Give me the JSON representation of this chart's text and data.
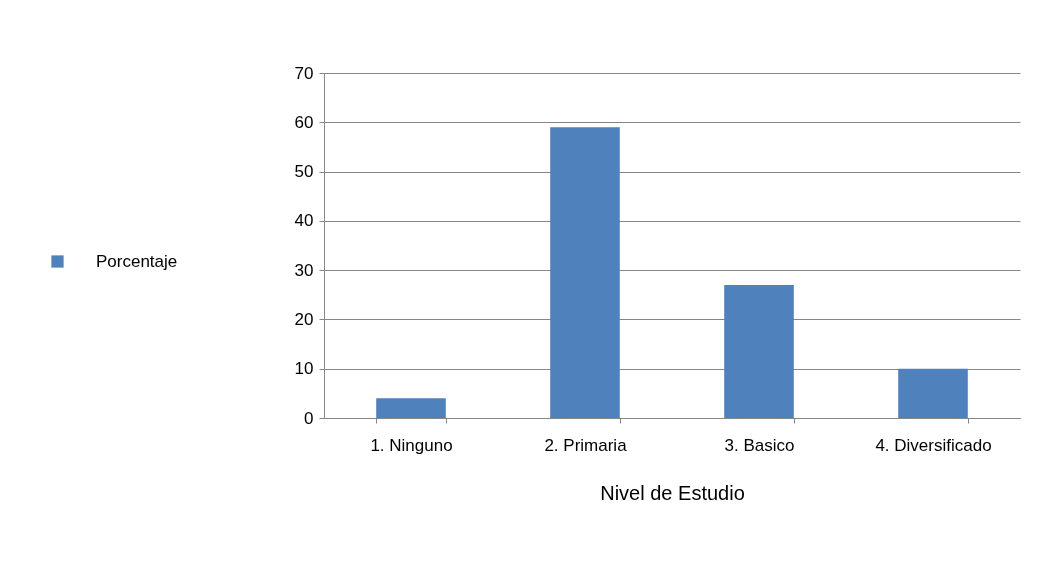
{
  "chart_data": {
    "type": "bar",
    "xlabel": "Nivel de Estudio",
    "categories": [
      "1. Ninguno",
      "2. Primaria",
      "3. Basico",
      "4. Diversificado"
    ],
    "series": [
      {
        "name": "Porcentaje",
        "color": "#4f81bd",
        "values": [
          4,
          59,
          27,
          10
        ]
      }
    ],
    "ylim": [
      0,
      70
    ],
    "yticks": [
      0,
      10,
      20,
      30,
      40,
      50,
      60,
      70
    ],
    "grid": "y",
    "legend": "left"
  }
}
